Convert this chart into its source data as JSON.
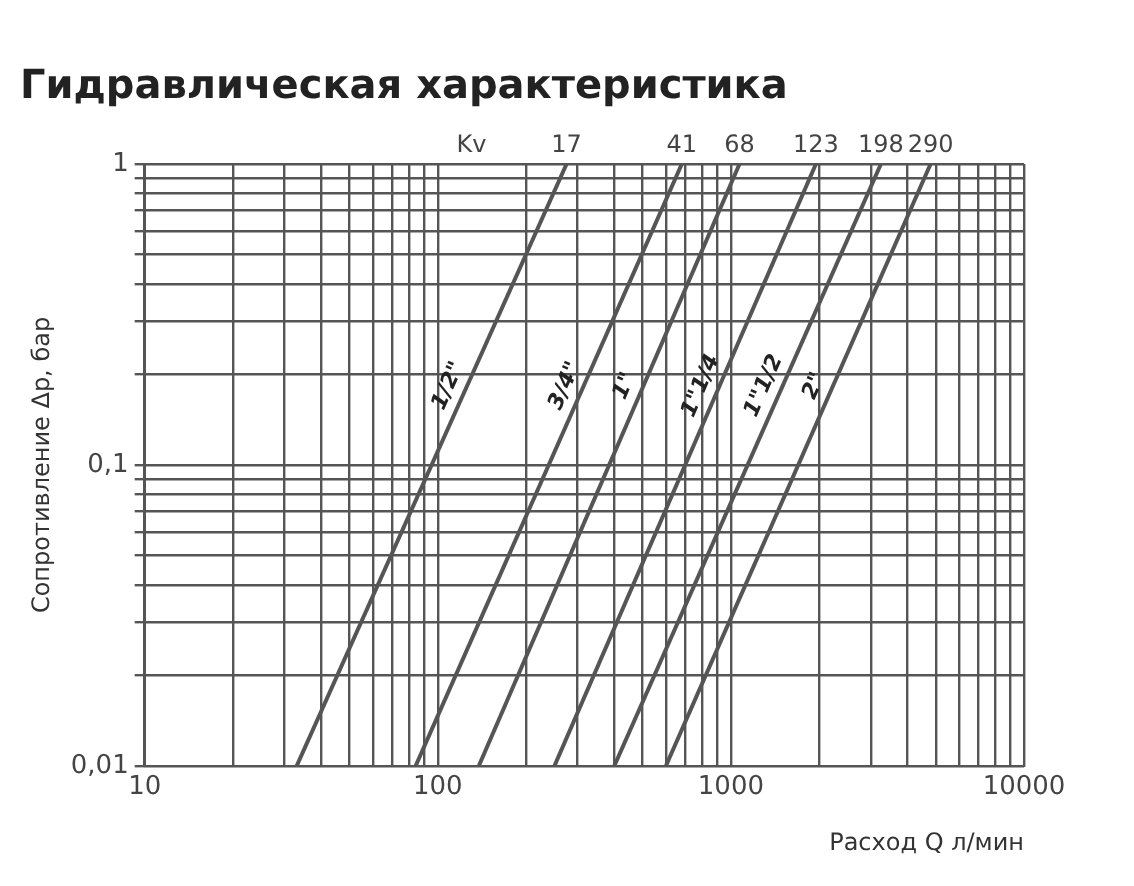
{
  "chart_data": {
    "type": "line",
    "title": "Гидравлическая характеристика",
    "xlabel": "Расход Q л/мин",
    "ylabel": "Сопротивление Δp, бар",
    "log": "xy",
    "grid": true,
    "legend": false,
    "marker": "none",
    "line_style": "solid",
    "xlim": [
      10,
      10000
    ],
    "ylim": [
      0.01,
      1
    ],
    "xticks": [
      10,
      {
        "value": 20,
        "label": null
      },
      {
        "value": 30,
        "label": null
      },
      {
        "value": 40,
        "label": null
      },
      {
        "value": 50,
        "label": null
      },
      {
        "value": 60,
        "label": null
      },
      {
        "value": 70,
        "label": null
      },
      {
        "value": 80,
        "label": null
      },
      {
        "value": 90,
        "label": null
      },
      100,
      {
        "value": 200,
        "label": null
      },
      {
        "value": 300,
        "label": null
      },
      {
        "value": 400,
        "label": null
      },
      {
        "value": 500,
        "label": null
      },
      {
        "value": 600,
        "label": null
      },
      {
        "value": 700,
        "label": null
      },
      {
        "value": 800,
        "label": null
      },
      {
        "value": 900,
        "label": null
      },
      1000,
      {
        "value": 2000,
        "label": null
      },
      {
        "value": 3000,
        "label": null
      },
      {
        "value": 4000,
        "label": null
      },
      {
        "value": 5000,
        "label": null
      },
      {
        "value": 6000,
        "label": null
      },
      {
        "value": 7000,
        "label": null
      },
      {
        "value": 8000,
        "label": null
      },
      {
        "value": 9000,
        "label": null
      },
      10000
    ],
    "yticks": [
      {
        "value": 0.01,
        "label": "0,01"
      },
      {
        "value": 0.02,
        "label": null
      },
      {
        "value": 0.03,
        "label": null
      },
      {
        "value": 0.04,
        "label": null
      },
      {
        "value": 0.05,
        "label": null
      },
      {
        "value": 0.06,
        "label": null
      },
      {
        "value": 0.07,
        "label": null
      },
      {
        "value": 0.08,
        "label": null
      },
      {
        "value": 0.09,
        "label": null
      },
      {
        "value": 0.1,
        "label": "0,1"
      },
      {
        "value": 0.2,
        "label": null
      },
      {
        "value": 0.3,
        "label": null
      },
      {
        "value": 0.4,
        "label": null
      },
      {
        "value": 0.5,
        "label": null
      },
      {
        "value": 0.6,
        "label": null
      },
      {
        "value": 0.7,
        "label": null
      },
      {
        "value": 0.8,
        "label": null
      },
      {
        "value": 0.9,
        "label": null
      },
      1
    ],
    "series": [
      {
        "name": "1/2\"",
        "color": "#555555",
        "x": [
          33,
          275
        ],
        "values": [
          0.01,
          1
        ]
      },
      {
        "name": "3/4\"",
        "color": "#555555",
        "x": [
          84,
          680
        ],
        "values": [
          0.01,
          1
        ]
      },
      {
        "name": "1\"",
        "color": "#555555",
        "x": [
          138,
          1070
        ],
        "values": [
          0.01,
          1
        ]
      },
      {
        "name": "1\"1/4",
        "color": "#555555",
        "x": [
          250,
          1950
        ],
        "values": [
          0.01,
          1
        ]
      },
      {
        "name": "1\"1/2",
        "color": "#555555",
        "x": [
          400,
          3250
        ],
        "values": [
          0.01,
          1
        ]
      },
      {
        "name": "2\"",
        "color": "#555555",
        "x": [
          600,
          4800
        ],
        "values": [
          0.01,
          1
        ]
      }
    ],
    "annotations": [
      "Kv",
      {
        "text": "17",
        "x": 275,
        "y": 1
      },
      {
        "text": "41",
        "x": 680,
        "y": 1
      },
      {
        "text": "68",
        "x": 1070,
        "y": 1
      },
      {
        "text": "123",
        "x": 1950,
        "y": 1
      },
      {
        "text": "198",
        "x": 3250,
        "y": 1
      },
      {
        "text": "290",
        "x": 4800,
        "y": 1
      }
    ]
  }
}
